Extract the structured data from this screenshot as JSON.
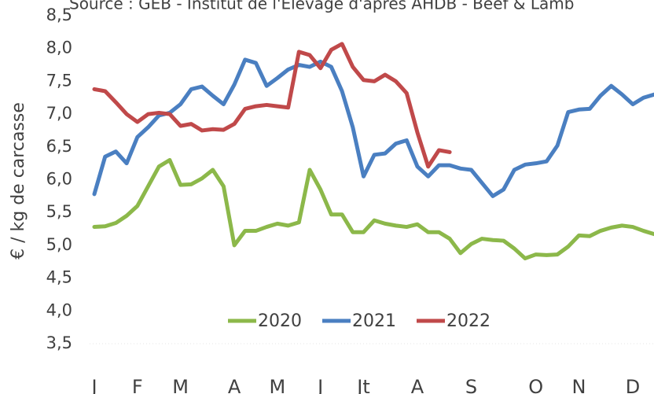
{
  "chart_data": {
    "type": "line",
    "title": "Source : GEB - Institut de l'Elevage d'après AHDB - Beef & Lamb",
    "ylabel": "€ / kg de carcasse",
    "categories": [
      "J",
      null,
      null,
      null,
      "F",
      null,
      null,
      null,
      "M",
      null,
      null,
      null,
      null,
      "A",
      null,
      null,
      null,
      "M",
      null,
      null,
      null,
      "J",
      null,
      null,
      null,
      "Jt",
      null,
      null,
      null,
      null,
      "A",
      null,
      null,
      null,
      null,
      "S",
      null,
      null,
      null,
      null,
      null,
      "O",
      null,
      null,
      null,
      "N",
      null,
      null,
      null,
      null,
      "D",
      null,
      null
    ],
    "series": [
      {
        "name": "2020",
        "color": "#8cb84a",
        "values": [
          5.28,
          5.29,
          5.34,
          5.45,
          5.6,
          5.9,
          6.2,
          6.3,
          5.92,
          5.93,
          6.02,
          6.15,
          5.9,
          5.0,
          5.22,
          5.22,
          5.28,
          5.33,
          5.3,
          5.35,
          6.15,
          5.85,
          5.47,
          5.47,
          5.2,
          5.2,
          5.38,
          5.33,
          5.3,
          5.28,
          5.32,
          5.2,
          5.2,
          5.1,
          4.88,
          5.02,
          5.1,
          5.08,
          5.07,
          4.95,
          4.8,
          4.86,
          4.85,
          4.86,
          4.98,
          5.15,
          5.14,
          5.22,
          5.27,
          5.3,
          5.28,
          5.22,
          5.17
        ]
      },
      {
        "name": "2021",
        "color": "#4a7fc1",
        "values": [
          5.78,
          6.35,
          6.43,
          6.25,
          6.65,
          6.8,
          6.98,
          7.02,
          7.15,
          7.38,
          7.42,
          7.28,
          7.15,
          7.45,
          7.83,
          7.78,
          7.43,
          7.55,
          7.68,
          7.75,
          7.72,
          7.8,
          7.72,
          7.35,
          6.8,
          6.05,
          6.38,
          6.4,
          6.55,
          6.6,
          6.2,
          6.05,
          6.22,
          6.22,
          6.17,
          6.15,
          5.95,
          5.75,
          5.85,
          6.15,
          6.23,
          6.25,
          6.28,
          6.52,
          7.03,
          7.07,
          7.08,
          7.28,
          7.43,
          7.3,
          7.15,
          7.25,
          7.3
        ]
      },
      {
        "name": "2022",
        "color": "#c0494a",
        "values": [
          7.38,
          7.35,
          7.18,
          7.0,
          6.88,
          7.0,
          7.02,
          7.0,
          6.82,
          6.85,
          6.75,
          6.77,
          6.76,
          6.85,
          7.08,
          7.12,
          7.14,
          7.12,
          7.1,
          7.95,
          7.9,
          7.7,
          7.98,
          8.07,
          7.72,
          7.52,
          7.5,
          7.6,
          7.5,
          7.32,
          6.72,
          6.2,
          6.45,
          6.42,
          null,
          null,
          null,
          null,
          null,
          null,
          null,
          null,
          null,
          null,
          null,
          null,
          null,
          null,
          null,
          null,
          null,
          null,
          null
        ]
      }
    ],
    "ylim": [
      3.5,
      8.5
    ],
    "yticks": [
      {
        "value": 3.5,
        "label": "3,5"
      },
      {
        "value": 4.0,
        "label": "4,0"
      },
      {
        "value": 4.5,
        "label": "4,5"
      },
      {
        "value": 5.0,
        "label": "5,0"
      },
      {
        "value": 5.5,
        "label": "5,5"
      },
      {
        "value": 6.0,
        "label": "6,0"
      },
      {
        "value": 6.5,
        "label": "6,5"
      },
      {
        "value": 7.0,
        "label": "7,0"
      },
      {
        "value": 7.5,
        "label": "7,5"
      },
      {
        "value": 8.0,
        "label": "8,0"
      },
      {
        "value": 8.5,
        "label": "8,5"
      }
    ],
    "grid": false
  }
}
